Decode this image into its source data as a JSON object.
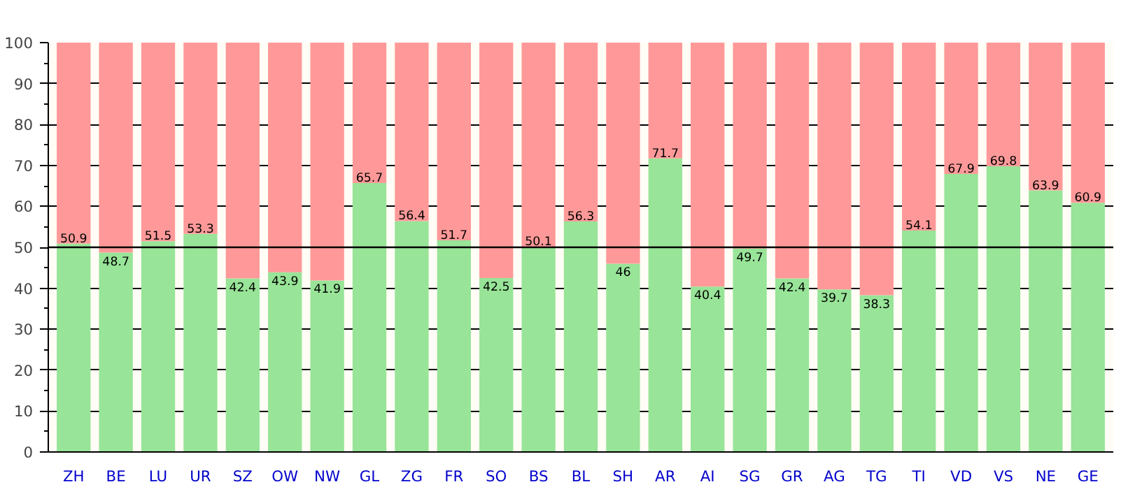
{
  "chart_data": {
    "type": "bar",
    "stacked": true,
    "categories": [
      "ZH",
      "BE",
      "LU",
      "UR",
      "SZ",
      "OW",
      "NW",
      "GL",
      "ZG",
      "FR",
      "SO",
      "BS",
      "BL",
      "SH",
      "AR",
      "AI",
      "SG",
      "GR",
      "AG",
      "TG",
      "TI",
      "VD",
      "VS",
      "NE",
      "GE"
    ],
    "series": [
      {
        "color": "#98e498",
        "values": [
          50.9,
          48.7,
          51.5,
          53.3,
          42.4,
          43.9,
          41.9,
          65.7,
          56.4,
          51.7,
          42.5,
          50.1,
          56.3,
          46,
          71.7,
          40.4,
          49.7,
          42.4,
          39.7,
          38.3,
          54.1,
          67.9,
          69.8,
          63.9,
          60.9
        ],
        "value_labels": [
          "50.9",
          "48.7",
          "51.5",
          "53.3",
          "42.4",
          "43.9",
          "41.9",
          "65.7",
          "56.4",
          "51.7",
          "42.5",
          "50.1",
          "56.3",
          "46",
          "71.7",
          "40.4",
          "49.7",
          "42.4",
          "39.7",
          "38.3",
          "54.1",
          "67.9",
          "69.8",
          "63.9",
          "60.9"
        ]
      },
      {
        "color": "#ff9999",
        "values": [
          49.1,
          51.3,
          48.5,
          46.7,
          57.6,
          56.1,
          58.1,
          34.3,
          43.6,
          48.3,
          57.5,
          49.9,
          43.7,
          54,
          28.3,
          59.6,
          50.3,
          57.6,
          60.3,
          61.7,
          45.9,
          32.1,
          30.2,
          36.1,
          39.1
        ]
      }
    ],
    "ylim": [
      0,
      100
    ],
    "yticks": [
      0,
      10,
      20,
      30,
      40,
      50,
      60,
      70,
      80,
      90,
      100
    ],
    "grid": "y",
    "ref_lines": [
      {
        "axis": "y",
        "value": 50,
        "color": "#000000"
      }
    ]
  }
}
